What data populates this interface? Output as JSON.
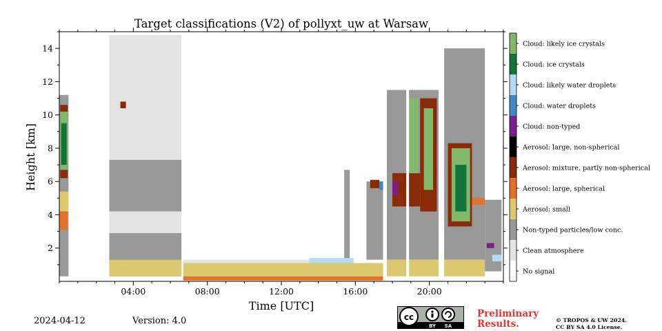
{
  "header": {
    "title": "Target classifications (V2) of pollyxt_uw at Warsaw"
  },
  "footer": {
    "date": "2024-04-12",
    "version": "Version: 4.0",
    "preliminary_line1": "Preliminary",
    "preliminary_line2": "Results.",
    "copyright_line1": "© TROPOS & UW 2024.",
    "copyright_line2": "CC BY SA 4.0 License.",
    "license_badge": {
      "icon": "cc-by-sa-icon",
      "label_by": "BY",
      "label_sa": "SA"
    }
  },
  "chart_data": {
    "type": "heatmap",
    "title": "Target classifications (V2) of pollyxt_uw at Warsaw",
    "xlabel": "Time [UTC]",
    "ylabel": "Height [km]",
    "xlim": [
      0,
      24
    ],
    "ylim": [
      0,
      15
    ],
    "x_ticks": [
      4,
      8,
      12,
      16,
      20
    ],
    "x_tick_labels": [
      "04:00",
      "08:00",
      "12:00",
      "16:00",
      "20:00"
    ],
    "y_ticks": [
      2,
      4,
      6,
      8,
      10,
      12,
      14
    ],
    "y_tick_labels": [
      "2",
      "4",
      "6",
      "8",
      "10",
      "12",
      "14"
    ],
    "grid": false,
    "legend_position": "right colorbar",
    "classes": [
      {
        "id": 0,
        "label": "No signal",
        "color": "#ffffff"
      },
      {
        "id": 1,
        "label": "Clean atmosphere",
        "color": "#e4e4e4"
      },
      {
        "id": 2,
        "label": "Non-typed particles/low conc.",
        "color": "#999999"
      },
      {
        "id": 3,
        "label": "Aerosol: small",
        "color": "#dcc86e"
      },
      {
        "id": 4,
        "label": "Aerosol: large, spherical",
        "color": "#e2722a"
      },
      {
        "id": 5,
        "label": "Aerosol: mixture, partly non-spherical",
        "color": "#8a2a08"
      },
      {
        "id": 6,
        "label": "Aerosol: large, non-spherical",
        "color": "#000000"
      },
      {
        "id": 7,
        "label": "Cloud: non-typed",
        "color": "#7a1f8c"
      },
      {
        "id": 8,
        "label": "Cloud: water droplets",
        "color": "#3e8ac4"
      },
      {
        "id": 9,
        "label": "Cloud: likely water droplets",
        "color": "#b4d9f2"
      },
      {
        "id": 10,
        "label": "Cloud: ice crystals",
        "color": "#12743a"
      },
      {
        "id": 11,
        "label": "Cloud: likely ice crystals",
        "color": "#82b86a"
      }
    ],
    "regions": [
      {
        "class": 2,
        "x": [
          0.0,
          0.5
        ],
        "y": [
          0.3,
          11.2
        ]
      },
      {
        "class": 3,
        "x": [
          0.0,
          0.5
        ],
        "y": [
          4.2,
          5.4
        ]
      },
      {
        "class": 4,
        "x": [
          0.0,
          0.45
        ],
        "y": [
          3.1,
          4.2
        ]
      },
      {
        "class": 5,
        "x": [
          0.05,
          0.45
        ],
        "y": [
          6.2,
          6.7
        ]
      },
      {
        "class": 11,
        "x": [
          0.05,
          0.45
        ],
        "y": [
          6.7,
          10.2
        ]
      },
      {
        "class": 10,
        "x": [
          0.1,
          0.4
        ],
        "y": [
          7.0,
          9.5
        ]
      },
      {
        "class": 5,
        "x": [
          0.05,
          0.45
        ],
        "y": [
          10.2,
          10.6
        ]
      },
      {
        "class": 2,
        "x": [
          0.5,
          2.5
        ],
        "y": [
          0.2,
          1.4
        ]
      },
      {
        "class": 7,
        "x": [
          0.6,
          1.5
        ],
        "y": [
          1.4,
          1.5
        ]
      },
      {
        "class": 9,
        "x": [
          1.2,
          1.4
        ],
        "y": [
          1.3,
          1.6
        ]
      },
      {
        "class": 1,
        "x": [
          2.7,
          6.6
        ],
        "y": [
          0.8,
          14.8
        ]
      },
      {
        "class": 2,
        "x": [
          2.7,
          6.6
        ],
        "y": [
          4.2,
          7.3
        ]
      },
      {
        "class": 1,
        "x": [
          2.7,
          6.6
        ],
        "y": [
          2.9,
          4.2
        ]
      },
      {
        "class": 2,
        "x": [
          2.7,
          6.6
        ],
        "y": [
          0.3,
          2.9
        ]
      },
      {
        "class": 3,
        "x": [
          2.7,
          6.6
        ],
        "y": [
          0.3,
          1.3
        ]
      },
      {
        "class": 5,
        "x": [
          3.3,
          3.6
        ],
        "y": [
          10.4,
          10.8
        ]
      },
      {
        "class": 1,
        "x": [
          6.7,
          15.9
        ],
        "y": [
          0.9,
          1.3
        ]
      },
      {
        "class": 9,
        "x": [
          13.5,
          15.9
        ],
        "y": [
          1.1,
          1.4
        ]
      },
      {
        "class": 3,
        "x": [
          6.7,
          17.5
        ],
        "y": [
          0.3,
          1.1
        ]
      },
      {
        "class": 4,
        "x": [
          6.7,
          17.5
        ],
        "y": [
          0.05,
          0.3
        ]
      },
      {
        "class": 2,
        "x": [
          15.4,
          15.7
        ],
        "y": [
          1.4,
          6.7
        ]
      },
      {
        "class": 2,
        "x": [
          16.6,
          17.5
        ],
        "y": [
          1.3,
          6.0
        ]
      },
      {
        "class": 5,
        "x": [
          16.8,
          17.3
        ],
        "y": [
          5.6,
          6.1
        ]
      },
      {
        "class": 8,
        "x": [
          17.3,
          17.6
        ],
        "y": [
          5.5,
          6.0
        ]
      },
      {
        "class": 2,
        "x": [
          17.7,
          20.5
        ],
        "y": [
          1.3,
          6.5
        ]
      },
      {
        "class": 3,
        "x": [
          17.7,
          20.5
        ],
        "y": [
          0.3,
          1.3
        ]
      },
      {
        "class": 2,
        "x": [
          17.7,
          20.5
        ],
        "y": [
          6.5,
          11.5
        ]
      },
      {
        "class": 5,
        "x": [
          18.0,
          19.5
        ],
        "y": [
          4.5,
          6.5
        ]
      },
      {
        "class": 7,
        "x": [
          18.0,
          18.3
        ],
        "y": [
          5.2,
          6.0
        ]
      },
      {
        "class": 11,
        "x": [
          18.8,
          19.4
        ],
        "y": [
          6.5,
          11.0
        ]
      },
      {
        "class": 5,
        "x": [
          19.5,
          20.4
        ],
        "y": [
          4.2,
          11.0
        ]
      },
      {
        "class": 11,
        "x": [
          19.7,
          20.2
        ],
        "y": [
          5.5,
          10.4
        ]
      },
      {
        "class": 2,
        "x": [
          20.8,
          23.0
        ],
        "y": [
          1.3,
          14.0
        ]
      },
      {
        "class": 3,
        "x": [
          20.8,
          23.0
        ],
        "y": [
          0.3,
          1.3
        ]
      },
      {
        "class": 5,
        "x": [
          21.0,
          22.3
        ],
        "y": [
          3.3,
          8.3
        ]
      },
      {
        "class": 11,
        "x": [
          21.2,
          22.2
        ],
        "y": [
          3.6,
          8.0
        ]
      },
      {
        "class": 10,
        "x": [
          21.4,
          22.0
        ],
        "y": [
          4.2,
          7.0
        ]
      },
      {
        "class": 4,
        "x": [
          22.3,
          23.0
        ],
        "y": [
          4.6,
          5.0
        ]
      },
      {
        "class": 2,
        "x": [
          23.0,
          23.9
        ],
        "y": [
          0.6,
          4.9
        ]
      },
      {
        "class": 7,
        "x": [
          23.1,
          23.5
        ],
        "y": [
          2.0,
          2.3
        ]
      },
      {
        "class": 9,
        "x": [
          23.4,
          23.9
        ],
        "y": [
          1.2,
          1.6
        ]
      }
    ],
    "no_signal_gaps": [
      {
        "x": [
          0.5,
          2.65
        ]
      },
      {
        "x": [
          17.5,
          17.7
        ]
      },
      {
        "x": [
          18.75,
          18.9
        ]
      },
      {
        "x": [
          20.5,
          20.75
        ]
      }
    ]
  }
}
